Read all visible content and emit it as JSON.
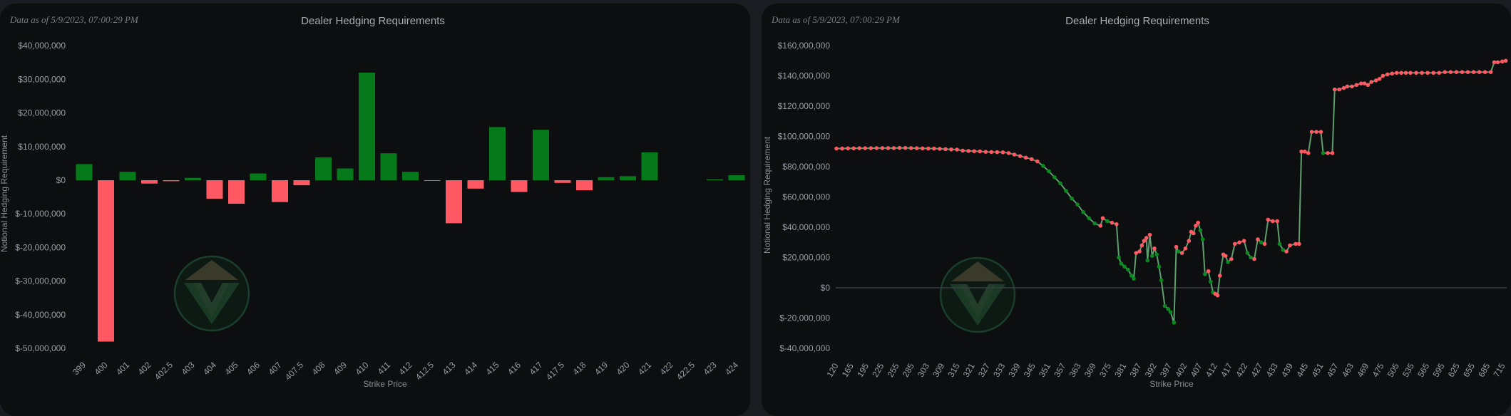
{
  "left_panel": {
    "timestamp": "Data as of 5/9/2023, 07:00:29 PM",
    "chart_data": {
      "type": "bar",
      "title": "Dealer Hedging Requirements",
      "xlabel": "Strike Price",
      "ylabel": "Notional Hedging Requirement",
      "ylim": [
        -50000000,
        40000000
      ],
      "yticks": [
        40000000,
        30000000,
        20000000,
        10000000,
        0,
        -10000000,
        -20000000,
        -30000000,
        -40000000,
        -50000000
      ],
      "ytick_labels": [
        "$40,000,000",
        "$30,000,000",
        "$20,000,000",
        "$10,000,000",
        "$0",
        "$-10,000,000",
        "$-20,000,000",
        "$-30,000,000",
        "$-40,000,000",
        "$-50,000,000"
      ],
      "categories": [
        "399",
        "400",
        "401",
        "402",
        "402.5",
        "403",
        "404",
        "405",
        "406",
        "407",
        "407.5",
        "408",
        "409",
        "410",
        "411",
        "412",
        "412.5",
        "413",
        "414",
        "415",
        "416",
        "417",
        "417.5",
        "418",
        "419",
        "420",
        "421",
        "422",
        "422.5",
        "423",
        "424"
      ],
      "values": [
        4800000,
        -48000000,
        2500000,
        -1000000,
        -300000,
        700000,
        -5500000,
        -7000000,
        2000000,
        -6500000,
        -1500000,
        6800000,
        3500000,
        32000000,
        8000000,
        2500000,
        -200000,
        -12800000,
        -2500000,
        15800000,
        -3500000,
        15000000,
        -800000,
        -3000000,
        900000,
        1200000,
        8300000,
        0,
        0,
        300000,
        1500000
      ],
      "grid": false,
      "legend": "none",
      "colors": {
        "positive": "#067a1a",
        "negative": "#ff5964"
      }
    }
  },
  "right_panel": {
    "timestamp": "Data as of 5/9/2023, 07:00:29 PM",
    "chart_data": {
      "type": "line",
      "title": "Dealer Hedging Requirements",
      "xlabel": "Strike Price",
      "ylabel": "Notional Hedging Requirement",
      "ylim": [
        -40000000,
        160000000
      ],
      "yticks": [
        160000000,
        140000000,
        120000000,
        100000000,
        80000000,
        60000000,
        40000000,
        20000000,
        0,
        -20000000,
        -40000000
      ],
      "ytick_labels": [
        "$160,000,000",
        "$140,000,000",
        "$120,000,000",
        "$100,000,000",
        "$80,000,000",
        "$60,000,000",
        "$40,000,000",
        "$20,000,000",
        "$0",
        "$-20,000,000",
        "$-40,000,000"
      ],
      "x_tick_labels": [
        "120",
        "165",
        "195",
        "225",
        "255",
        "285",
        "303",
        "309",
        "315",
        "321",
        "327",
        "333",
        "339",
        "345",
        "351",
        "357",
        "363",
        "369",
        "375",
        "381",
        "387",
        "392",
        "397",
        "402",
        "407",
        "412",
        "417",
        "422",
        "427",
        "433",
        "439",
        "445",
        "451",
        "457",
        "463",
        "469",
        "475",
        "505",
        "535",
        "565",
        "595",
        "625",
        "655",
        "685",
        "715"
      ],
      "zero_line": true,
      "grid": false,
      "legend": "none",
      "colors": {
        "line": "#5e9e6f",
        "up_marker": "#ff5964",
        "down_marker": "#0b8a1f"
      },
      "points": [
        [
          0,
          92000000
        ],
        [
          0.5,
          92000000
        ],
        [
          1,
          92100000
        ],
        [
          1.5,
          92100000
        ],
        [
          2,
          92200000
        ],
        [
          2.5,
          92200000
        ],
        [
          3,
          92200000
        ],
        [
          3.5,
          92300000
        ],
        [
          4,
          92300000
        ],
        [
          4.5,
          92300000
        ],
        [
          5,
          92300000
        ],
        [
          5.5,
          92400000
        ],
        [
          6,
          92400000
        ],
        [
          6.5,
          92300000
        ],
        [
          7,
          92200000
        ],
        [
          7.5,
          92100000
        ],
        [
          8,
          92000000
        ],
        [
          8.5,
          92000000
        ],
        [
          9,
          91800000
        ],
        [
          9.5,
          91600000
        ],
        [
          10,
          91400000
        ],
        [
          10.5,
          91300000
        ],
        [
          11,
          90600000
        ],
        [
          11.5,
          90400000
        ],
        [
          12,
          90200000
        ],
        [
          12.5,
          90100000
        ],
        [
          13,
          89800000
        ],
        [
          13.5,
          89700000
        ],
        [
          14,
          89600000
        ],
        [
          14.5,
          89500000
        ],
        [
          15,
          89000000
        ],
        [
          15.5,
          88000000
        ],
        [
          16,
          87000000
        ],
        [
          16.5,
          86000000
        ],
        [
          17,
          85000000
        ],
        [
          17.5,
          83500000
        ],
        [
          18,
          80500000
        ],
        [
          18.5,
          77000000
        ],
        [
          19,
          73000000
        ],
        [
          19.5,
          69000000
        ],
        [
          20,
          64000000
        ],
        [
          20.5,
          59000000
        ],
        [
          21,
          55000000
        ],
        [
          21.5,
          50000000
        ],
        [
          22,
          46000000
        ],
        [
          22.5,
          42500000
        ],
        [
          23,
          41000000
        ],
        [
          23.2,
          46000000
        ],
        [
          23.6,
          44000000
        ],
        [
          24,
          43000000
        ],
        [
          24.4,
          42000000
        ],
        [
          24.6,
          20000000
        ],
        [
          24.8,
          16000000
        ],
        [
          25.1,
          14000000
        ],
        [
          25.4,
          12000000
        ],
        [
          25.7,
          8000000
        ],
        [
          25.9,
          6000000
        ],
        [
          26.1,
          23000000
        ],
        [
          26.4,
          24000000
        ],
        [
          26.6,
          28000000
        ],
        [
          26.8,
          31000000
        ],
        [
          27,
          33000000
        ],
        [
          27.1,
          18000000
        ],
        [
          27.3,
          35000000
        ],
        [
          27.5,
          21000000
        ],
        [
          27.7,
          26000000
        ],
        [
          27.9,
          22000000
        ],
        [
          28.1,
          14000000
        ],
        [
          28.3,
          5000000
        ],
        [
          28.6,
          -12000000
        ],
        [
          28.9,
          -14000000
        ],
        [
          29.1,
          -16000000
        ],
        [
          29.4,
          -23000000
        ],
        [
          29.6,
          27000000
        ],
        [
          29.8,
          24000000
        ],
        [
          30.1,
          23000000
        ],
        [
          30.4,
          26000000
        ],
        [
          30.7,
          31000000
        ],
        [
          30.9,
          37000000
        ],
        [
          31.1,
          36000000
        ],
        [
          31.3,
          41000000
        ],
        [
          31.5,
          43000000
        ],
        [
          31.7,
          38000000
        ],
        [
          31.9,
          32000000
        ],
        [
          32.1,
          9000000
        ],
        [
          32.4,
          11000000
        ],
        [
          32.6,
          4000000
        ],
        [
          32.8,
          -3000000
        ],
        [
          33,
          -4000000
        ],
        [
          33.2,
          -5000000
        ],
        [
          33.4,
          8000000
        ],
        [
          33.7,
          22000000
        ],
        [
          33.9,
          21000000
        ],
        [
          34.1,
          17000000
        ],
        [
          34.4,
          19000000
        ],
        [
          34.7,
          29000000
        ],
        [
          35.1,
          30000000
        ],
        [
          35.5,
          31000000
        ],
        [
          35.8,
          23000000
        ],
        [
          36.1,
          20000000
        ],
        [
          36.4,
          19000000
        ],
        [
          36.7,
          32000000
        ],
        [
          37,
          30000000
        ],
        [
          37.3,
          29000000
        ],
        [
          37.6,
          45000000
        ],
        [
          38,
          44000000
        ],
        [
          38.4,
          44000000
        ],
        [
          38.6,
          29000000
        ],
        [
          38.9,
          25000000
        ],
        [
          39.2,
          24000000
        ],
        [
          39.5,
          28000000
        ],
        [
          40,
          29000000
        ],
        [
          40.3,
          29000000
        ],
        [
          40.5,
          90000000
        ],
        [
          40.8,
          90000000
        ],
        [
          41.1,
          89000000
        ],
        [
          41.4,
          103000000
        ],
        [
          41.8,
          103000000
        ],
        [
          42.2,
          103000000
        ],
        [
          42.4,
          89000000
        ],
        [
          42.8,
          89000000
        ],
        [
          43.2,
          89000000
        ],
        [
          43.4,
          131000000
        ],
        [
          43.8,
          131000000
        ],
        [
          44.2,
          132000000
        ],
        [
          44.5,
          133000000
        ],
        [
          44.9,
          133000000
        ],
        [
          45.3,
          134000000
        ],
        [
          45.7,
          135000000
        ],
        [
          46,
          135000000
        ],
        [
          46.3,
          134000000
        ],
        [
          46.6,
          136000000
        ],
        [
          47,
          137000000
        ],
        [
          47.3,
          138000000
        ],
        [
          47.6,
          140000000
        ],
        [
          48,
          141000000
        ],
        [
          48.4,
          141500000
        ],
        [
          48.8,
          142000000
        ],
        [
          49.2,
          142000000
        ],
        [
          49.6,
          142000000
        ],
        [
          50,
          142000000
        ],
        [
          50.5,
          142000000
        ],
        [
          51,
          142000000
        ],
        [
          51.5,
          142000000
        ],
        [
          52,
          142000000
        ],
        [
          52.5,
          142000000
        ],
        [
          53,
          142500000
        ],
        [
          53.5,
          142500000
        ],
        [
          54,
          142500000
        ],
        [
          54.5,
          142500000
        ],
        [
          55,
          142500000
        ],
        [
          55.5,
          142500000
        ],
        [
          56,
          142500000
        ],
        [
          56.5,
          142500000
        ],
        [
          57,
          142500000
        ],
        [
          57.3,
          149000000
        ],
        [
          57.6,
          149000000
        ],
        [
          58,
          149500000
        ],
        [
          58.3,
          150000000
        ]
      ]
    }
  }
}
